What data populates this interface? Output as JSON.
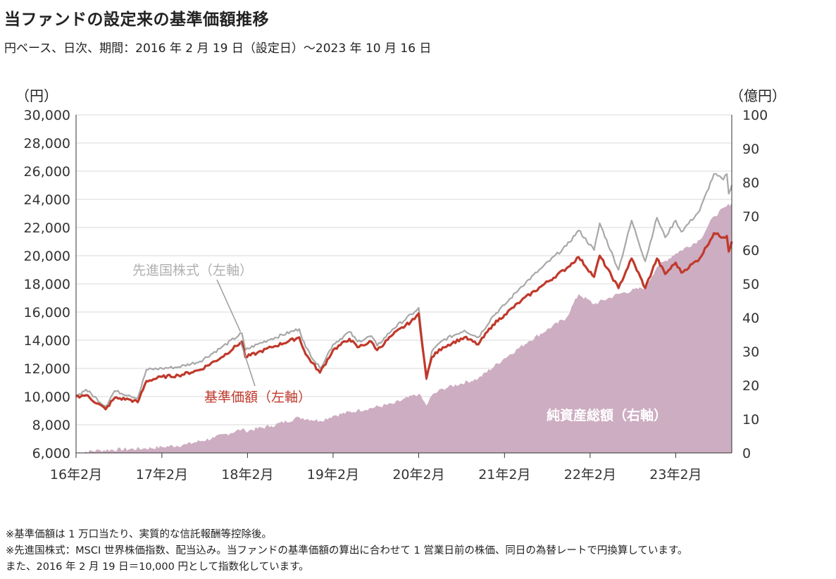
{
  "title": "当ファンドの設定来の基準価額推移",
  "subtitle": "円ベース、日次、期間：2016 年 2 月 19 日（設定日）～2023 年 10 月 16 日",
  "chart_data": {
    "type": "line",
    "x_tick_labels": [
      "16年2月",
      "17年2月",
      "18年2月",
      "19年2月",
      "20年2月",
      "21年2月",
      "22年2月",
      "23年2月"
    ],
    "x_range": [
      "2016-02-19",
      "2023-10-16"
    ],
    "y_left": {
      "unit_label": "（円）",
      "lim": [
        6000,
        30000
      ],
      "ticks": [
        "30,000",
        "28,000",
        "26,000",
        "24,000",
        "22,000",
        "20,000",
        "18,000",
        "16,000",
        "14,000",
        "12,000",
        "10,000",
        "8,000",
        "6,000"
      ]
    },
    "y_right": {
      "unit_label": "（億円）",
      "lim": [
        0,
        100
      ],
      "ticks": [
        "100",
        "90",
        "80",
        "70",
        "60",
        "50",
        "40",
        "30",
        "20",
        "10",
        "0"
      ]
    },
    "grid": "horizontal",
    "series": [
      {
        "name": "先進国株式（左軸）",
        "axis": "left",
        "kind": "line",
        "color": "#a8a8a8",
        "points": [
          [
            "2016-02-19",
            10000
          ],
          [
            "2016-04-01",
            10500
          ],
          [
            "2016-06-24",
            9300
          ],
          [
            "2016-08-01",
            10400
          ],
          [
            "2016-10-01",
            10100
          ],
          [
            "2016-11-08",
            9900
          ],
          [
            "2016-12-15",
            11900
          ],
          [
            "2017-02-19",
            12000
          ],
          [
            "2017-05-01",
            12100
          ],
          [
            "2017-08-01",
            12500
          ],
          [
            "2017-11-01",
            13500
          ],
          [
            "2018-01-26",
            14500
          ],
          [
            "2018-02-10",
            13300
          ],
          [
            "2018-04-01",
            13700
          ],
          [
            "2018-06-01",
            14100
          ],
          [
            "2018-09-28",
            14800
          ],
          [
            "2018-10-25",
            13500
          ],
          [
            "2018-12-25",
            12000
          ],
          [
            "2019-02-19",
            13700
          ],
          [
            "2019-04-30",
            14600
          ],
          [
            "2019-06-03",
            13900
          ],
          [
            "2019-08-01",
            14300
          ],
          [
            "2019-08-26",
            13600
          ],
          [
            "2019-11-01",
            14800
          ],
          [
            "2020-02-01",
            16000
          ],
          [
            "2020-02-19",
            16300
          ],
          [
            "2020-03-23",
            11200
          ],
          [
            "2020-04-15",
            13200
          ],
          [
            "2020-06-01",
            14000
          ],
          [
            "2020-09-01",
            14700
          ],
          [
            "2020-10-30",
            14200
          ],
          [
            "2020-12-31",
            15700
          ],
          [
            "2021-02-19",
            16500
          ],
          [
            "2021-05-01",
            17800
          ],
          [
            "2021-08-01",
            19200
          ],
          [
            "2021-11-10",
            20700
          ],
          [
            "2022-01-01",
            21800
          ],
          [
            "2022-03-08",
            20400
          ],
          [
            "2022-04-01",
            22300
          ],
          [
            "2022-06-20",
            19000
          ],
          [
            "2022-08-15",
            22500
          ],
          [
            "2022-10-12",
            19600
          ],
          [
            "2022-12-01",
            22700
          ],
          [
            "2023-01-05",
            21300
          ],
          [
            "2023-02-19",
            22500
          ],
          [
            "2023-03-15",
            21700
          ],
          [
            "2023-06-01",
            23200
          ],
          [
            "2023-08-01",
            25800
          ],
          [
            "2023-09-10",
            25400
          ],
          [
            "2023-09-25",
            25800
          ],
          [
            "2023-10-03",
            24400
          ],
          [
            "2023-10-16",
            25000
          ]
        ]
      },
      {
        "name": "基準価額（左軸）",
        "axis": "left",
        "kind": "line",
        "color": "#c0392b",
        "points": [
          [
            "2016-02-19",
            10000
          ],
          [
            "2016-04-01",
            10100
          ],
          [
            "2016-06-24",
            9100
          ],
          [
            "2016-08-01",
            9900
          ],
          [
            "2016-10-01",
            9800
          ],
          [
            "2016-11-08",
            9600
          ],
          [
            "2016-12-15",
            11100
          ],
          [
            "2017-02-19",
            11400
          ],
          [
            "2017-05-01",
            11500
          ],
          [
            "2017-08-01",
            11900
          ],
          [
            "2017-11-01",
            12800
          ],
          [
            "2018-01-26",
            13900
          ],
          [
            "2018-02-10",
            12800
          ],
          [
            "2018-04-01",
            13100
          ],
          [
            "2018-06-01",
            13500
          ],
          [
            "2018-09-28",
            14200
          ],
          [
            "2018-10-25",
            13000
          ],
          [
            "2018-12-25",
            11700
          ],
          [
            "2019-02-19",
            13300
          ],
          [
            "2019-04-30",
            14100
          ],
          [
            "2019-06-03",
            13500
          ],
          [
            "2019-08-01",
            13900
          ],
          [
            "2019-08-26",
            13300
          ],
          [
            "2019-11-01",
            14400
          ],
          [
            "2020-02-01",
            15500
          ],
          [
            "2020-02-19",
            15900
          ],
          [
            "2020-03-23",
            11300
          ],
          [
            "2020-04-15",
            12800
          ],
          [
            "2020-06-01",
            13500
          ],
          [
            "2020-09-01",
            14200
          ],
          [
            "2020-10-30",
            13700
          ],
          [
            "2020-12-31",
            15100
          ],
          [
            "2021-02-19",
            15800
          ],
          [
            "2021-05-01",
            16800
          ],
          [
            "2021-08-01",
            17900
          ],
          [
            "2021-11-10",
            19100
          ],
          [
            "2022-01-01",
            19900
          ],
          [
            "2022-03-08",
            18500
          ],
          [
            "2022-04-01",
            20000
          ],
          [
            "2022-06-20",
            17700
          ],
          [
            "2022-08-15",
            19800
          ],
          [
            "2022-10-12",
            17700
          ],
          [
            "2022-12-01",
            19800
          ],
          [
            "2023-01-05",
            18700
          ],
          [
            "2023-02-19",
            19500
          ],
          [
            "2023-03-15",
            18800
          ],
          [
            "2023-06-01",
            19800
          ],
          [
            "2023-08-01",
            21600
          ],
          [
            "2023-09-10",
            21300
          ],
          [
            "2023-09-25",
            21400
          ],
          [
            "2023-10-03",
            20300
          ],
          [
            "2023-10-16",
            21000
          ]
        ]
      },
      {
        "name": "純資産総額（右軸）",
        "axis": "right",
        "kind": "area",
        "color": "#cdadc1",
        "points": [
          [
            "2016-02-19",
            0
          ],
          [
            "2016-06-01",
            0.8
          ],
          [
            "2016-12-01",
            1.3
          ],
          [
            "2017-02-19",
            1.7
          ],
          [
            "2017-06-01",
            2.5
          ],
          [
            "2017-10-01",
            4.5
          ],
          [
            "2018-01-26",
            7
          ],
          [
            "2018-02-10",
            6.5
          ],
          [
            "2018-06-01",
            8
          ],
          [
            "2018-09-28",
            10.5
          ],
          [
            "2018-12-25",
            9.5
          ],
          [
            "2019-02-19",
            11
          ],
          [
            "2019-06-01",
            12.5
          ],
          [
            "2019-11-01",
            14.5
          ],
          [
            "2020-02-19",
            17.5
          ],
          [
            "2020-03-23",
            14
          ],
          [
            "2020-04-15",
            17
          ],
          [
            "2020-06-01",
            19
          ],
          [
            "2020-10-30",
            22
          ],
          [
            "2021-02-19",
            28
          ],
          [
            "2021-06-01",
            33
          ],
          [
            "2021-11-10",
            40
          ],
          [
            "2022-01-01",
            47
          ],
          [
            "2022-03-08",
            44
          ],
          [
            "2022-06-20",
            47
          ],
          [
            "2022-10-12",
            49
          ],
          [
            "2022-12-01",
            55
          ],
          [
            "2023-02-19",
            59
          ],
          [
            "2023-06-01",
            63
          ],
          [
            "2023-08-01",
            70
          ],
          [
            "2023-10-16",
            74
          ]
        ]
      }
    ],
    "annotations": [
      {
        "text": "先進国株式（左軸）",
        "color": "#b0b0b0"
      },
      {
        "text": "基準価額（左軸）",
        "color": "#c0392b"
      },
      {
        "text": "純資産総額（右軸）",
        "color": "#ffffff"
      }
    ]
  },
  "notes": [
    "※基準価額は 1 万口当たり、実質的な信託報酬等控除後。",
    "※先進国株式：MSCI 世界株価指数、配当込み。当ファンドの基準価額の算出に合わせて 1 営業日前の株価、同日の為替レートで円換算しています。",
    "また、2016 年 2 月 19 日＝10,000 円として指数化しています。"
  ]
}
